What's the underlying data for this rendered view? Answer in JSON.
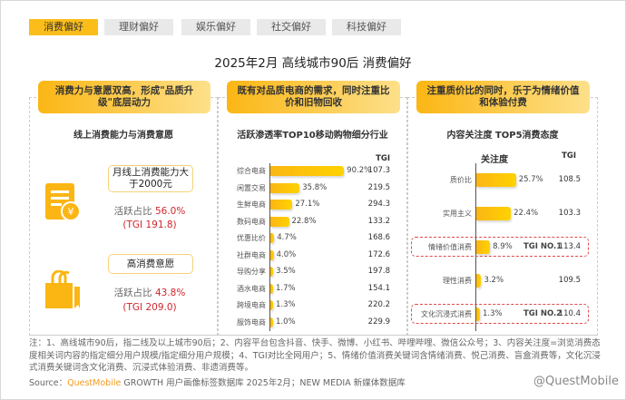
{
  "tabs": [
    {
      "label": "消费偏好",
      "active": true
    },
    {
      "label": "理财偏好"
    },
    {
      "label": "娱乐偏好"
    },
    {
      "label": "社交偏好"
    },
    {
      "label": "科技偏好"
    }
  ],
  "title": "2025年2月 高线城市90后 消费偏好",
  "col1": {
    "header": "消费力与意愿双高，形成\"品质升级\"底层动力",
    "subtitle": "线上消费能力与消费意愿",
    "items": [
      {
        "pill": "月线上消费能力大于2000元",
        "label": "活跃占比",
        "value": "56.0%",
        "tgi": "(TGI 191.8)",
        "icon": "bill-yuan-icon"
      },
      {
        "pill": "高消费意愿",
        "label": "活跃占比",
        "value": "43.8%",
        "tgi": "(TGI 209.0)",
        "icon": "shopping-bag-icon"
      }
    ]
  },
  "chart_data": [
    {
      "type": "bar",
      "orientation": "horizontal",
      "header": "既有对品质电商的需求，同时注重比价和旧物回收",
      "title": "活跃渗透率TOP10移动购物细分行业",
      "tgi_label": "TGI",
      "categories": [
        "综合电商",
        "闲置交易",
        "生鲜电商",
        "数码电商",
        "优惠比价",
        "社群电商",
        "导购分享",
        "酒水电商",
        "跨境电商",
        "服饰电商"
      ],
      "values": [
        90.2,
        35.8,
        27.1,
        22.8,
        4.7,
        4.0,
        3.5,
        1.7,
        1.3,
        1.0
      ],
      "value_labels": [
        "90.2%",
        "35.8%",
        "27.1%",
        "22.8%",
        "4.7%",
        "4.0%",
        "3.5%",
        "1.7%",
        "1.3%",
        "1.0%"
      ],
      "tgi": [
        "107.3",
        "219.5",
        "294.3",
        "133.2",
        "168.6",
        "172.6",
        "197.8",
        "154.1",
        "220.2",
        "229.9"
      ],
      "tgi_highlight": [
        false,
        true,
        true,
        false,
        true,
        false,
        false,
        false,
        true,
        false
      ]
    },
    {
      "type": "bar",
      "orientation": "horizontal",
      "header": "注重质价比的同时，乐于为情绪价值和体验付费",
      "title": "内容关注度 TOP5消费态度",
      "series_label": "关注度",
      "tgi_label": "TGI",
      "categories": [
        "质价比",
        "实用主义",
        "情绪价值消费",
        "理性消费",
        "文化沉浸式消费"
      ],
      "values": [
        25.7,
        22.4,
        8.9,
        3.2,
        1.3
      ],
      "value_labels": [
        "25.7%",
        "22.4%",
        "8.9%",
        "3.2%",
        "1.3%"
      ],
      "tgi": [
        "108.5",
        "103.3",
        "113.4",
        "109.5",
        "110.4"
      ],
      "badges": [
        "",
        "",
        "TGI NO.1",
        "",
        "TGI NO.2"
      ]
    }
  ],
  "notes": "注：1、高线城市90后，指二线及以上城市90后；2、内容平台包含抖音、快手、微博、小红书、哔哩哔哩、微信公众号；3、内容关注度=浏览消费态度相关词内容的指定细分用户规模/指定细分用户规模；4、TGI对比全网用户；5、情绪价值消费关键词含情绪消费、悦己消费、盲盒消费等，文化沉浸式消费关键词含文化消费、沉浸式体验消费、非遗消费等。",
  "source": {
    "prefix": "Source：",
    "brand": "QuestMobile",
    "text": " GROWTH 用户画像标签数据库 2025年2月；NEW MEDIA 新媒体数据库"
  },
  "watermark": "@QuestMobile",
  "colors": {
    "accent": "#fbb614",
    "red": "#d0262e"
  }
}
